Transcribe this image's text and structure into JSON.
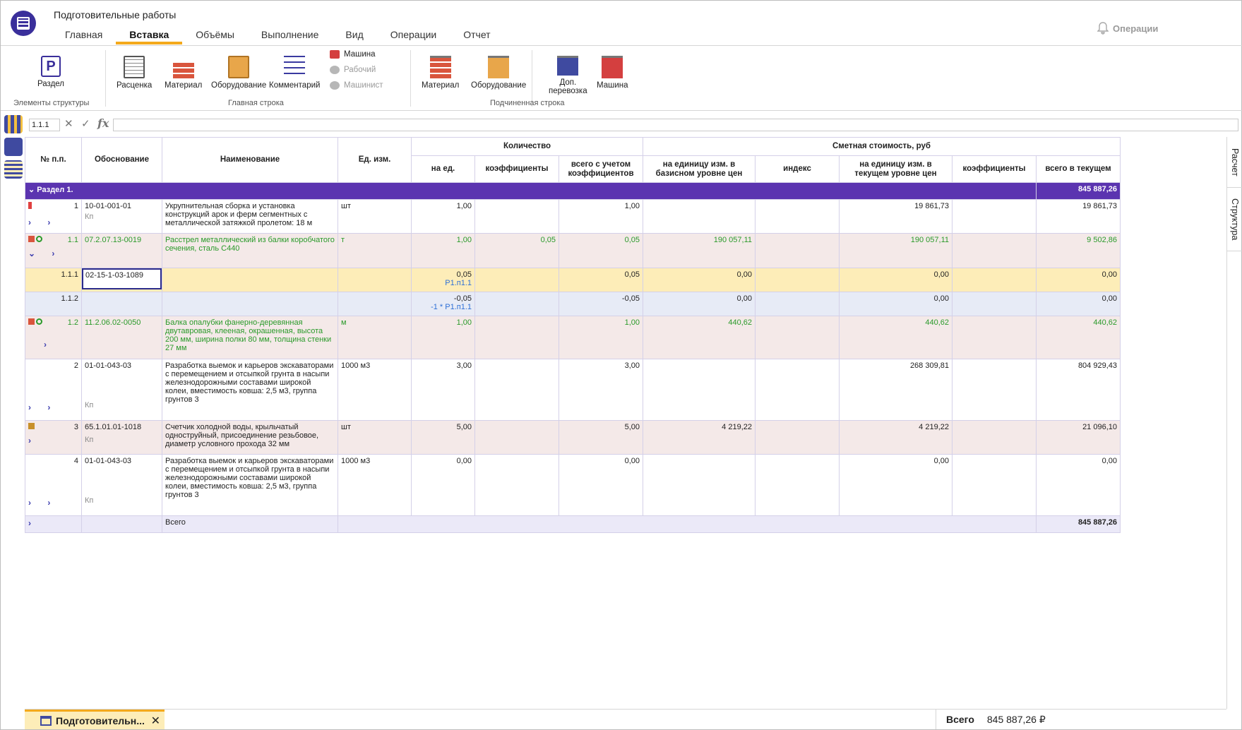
{
  "header": {
    "title": "Подготовительные работы",
    "tabs": [
      "Главная",
      "Вставка",
      "Объёмы",
      "Выполнение",
      "Вид",
      "Операции",
      "Отчет"
    ],
    "active_tab": "Вставка",
    "operations_label": "Операции"
  },
  "ribbon": {
    "structure": {
      "razdel": "Раздел",
      "group": "Элементы структуры"
    },
    "main": {
      "rascenka": "Расценка",
      "material": "Материал",
      "oborud": "Оборудование",
      "comment": "Комментарий",
      "mashina": "Машина",
      "rabochiy": "Рабочий",
      "mashinist": "Машинист",
      "group": "Главная строка"
    },
    "sub": {
      "material": "Материал",
      "oborud": "Оборудование",
      "dop1": "Доп.",
      "dop2": "перевозка",
      "mashina": "Машина",
      "group": "Подчиненная строка"
    }
  },
  "formula": {
    "cell_ref": "1.1.1",
    "value": ""
  },
  "table": {
    "headers": {
      "num": "№ п.п.",
      "obosn": "Обоснование",
      "name": "Наименование",
      "unit": "Ед. изм.",
      "qty": "Количество",
      "cost": "Сметная стоимость, руб",
      "qty_per": "на ед.",
      "qty_koef": "коэффициенты",
      "qty_total": "всего с учетом коэффициентов",
      "base": "на единицу изм. в базисном уровне цен",
      "index": "индекс",
      "current": "на единицу изм. в текущем уровне цен",
      "cost_koef": "коэффициенты",
      "total_current": "всего в текущем"
    },
    "section": {
      "label": "Раздел 1.",
      "total": "845 887,26"
    },
    "rows": [
      {
        "num": "1",
        "obosn": "10-01-001-01",
        "name": "Укрупнительная сборка и установка конструкций арок и ферм сегментных с металлической затяжкой пролетом: 18 м",
        "unit": "шт",
        "qty": "1,00",
        "qkoef": "",
        "qtotal": "1,00",
        "base": "",
        "index": "",
        "current": "19 861,73",
        "ckoef": "",
        "total": "19 861,73"
      },
      {
        "num": "1.1",
        "obosn": "07.2.07.13-0019",
        "name": "Расстрел металлический из балки коробчатого сечения, сталь С440",
        "unit": "т",
        "qty": "1,00",
        "qkoef": "0,05",
        "qtotal": "0,05",
        "base": "190 057,11",
        "index": "",
        "current": "190 057,11",
        "ckoef": "",
        "total": "9 502,86"
      },
      {
        "num": "1.1.1",
        "obosn": "02-15-1-03-1089",
        "name": "",
        "unit": "",
        "qty": "0,05",
        "qty_sub": "Р1.п1.1",
        "qkoef": "",
        "qtotal": "0,05",
        "base": "0,00",
        "index": "",
        "current": "0,00",
        "ckoef": "",
        "total": "0,00"
      },
      {
        "num": "1.1.2",
        "obosn": "",
        "name": "",
        "unit": "",
        "qty": "-0,05",
        "qty_sub": "-1 * Р1.п1.1",
        "qkoef": "",
        "qtotal": "-0,05",
        "base": "0,00",
        "index": "",
        "current": "0,00",
        "ckoef": "",
        "total": "0,00"
      },
      {
        "num": "1.2",
        "obosn": "11.2.06.02-0050",
        "name": "Балка опалубки фанерно-деревянная двутавровая, клееная, окрашенная, высота 200 мм, ширина полки 80 мм, толщина стенки 27 мм",
        "unit": "м",
        "qty": "1,00",
        "qkoef": "",
        "qtotal": "1,00",
        "base": "440,62",
        "index": "",
        "current": "440,62",
        "ckoef": "",
        "total": "440,62"
      },
      {
        "num": "2",
        "obosn": "01-01-043-03",
        "name": "Разработка выемок и карьеров экскаваторами с перемещением и отсыпкой грунта в насыпи железнодорожными составами широкой колеи, вместимость ковша: 2,5 м3, группа грунтов 3",
        "unit": "1000 м3",
        "qty": "3,00",
        "qkoef": "",
        "qtotal": "3,00",
        "base": "",
        "index": "",
        "current": "268 309,81",
        "ckoef": "",
        "total": "804 929,43"
      },
      {
        "num": "3",
        "obosn": "65.1.01.01-1018",
        "name": "Счетчик холодной воды, крыльчатый одноструйный, присоединение резьбовое, диаметр условного прохода 32 мм",
        "unit": "шт",
        "qty": "5,00",
        "qkoef": "",
        "qtotal": "5,00",
        "base": "4 219,22",
        "index": "",
        "current": "4 219,22",
        "ckoef": "",
        "total": "21 096,10"
      },
      {
        "num": "4",
        "obosn": "01-01-043-03",
        "name": "Разработка выемок и карьеров экскаваторами с перемещением и отсыпкой грунта в насыпи железнодорожными составами широкой колеи, вместимость ковша: 2,5 м3, группа грунтов 3",
        "unit": "1000 м3",
        "qty": "0,00",
        "qkoef": "",
        "qtotal": "0,00",
        "base": "",
        "index": "",
        "current": "0,00",
        "ckoef": "",
        "total": "0,00"
      }
    ],
    "kp": "Кп",
    "total_row": {
      "label": "Всего",
      "value": "845 887,26"
    }
  },
  "side_tabs": {
    "raschet": "Расчет",
    "struktura": "Структура"
  },
  "footer": {
    "doc_tab": "Подготовительн...",
    "close": "✕",
    "total_label": "Всего",
    "total_value": "845 887,26 ₽"
  },
  "colors": {
    "accent": "#f4a91c",
    "section": "#5b34b0",
    "green": "#2a9a2a",
    "link": "#2e6fd6"
  }
}
